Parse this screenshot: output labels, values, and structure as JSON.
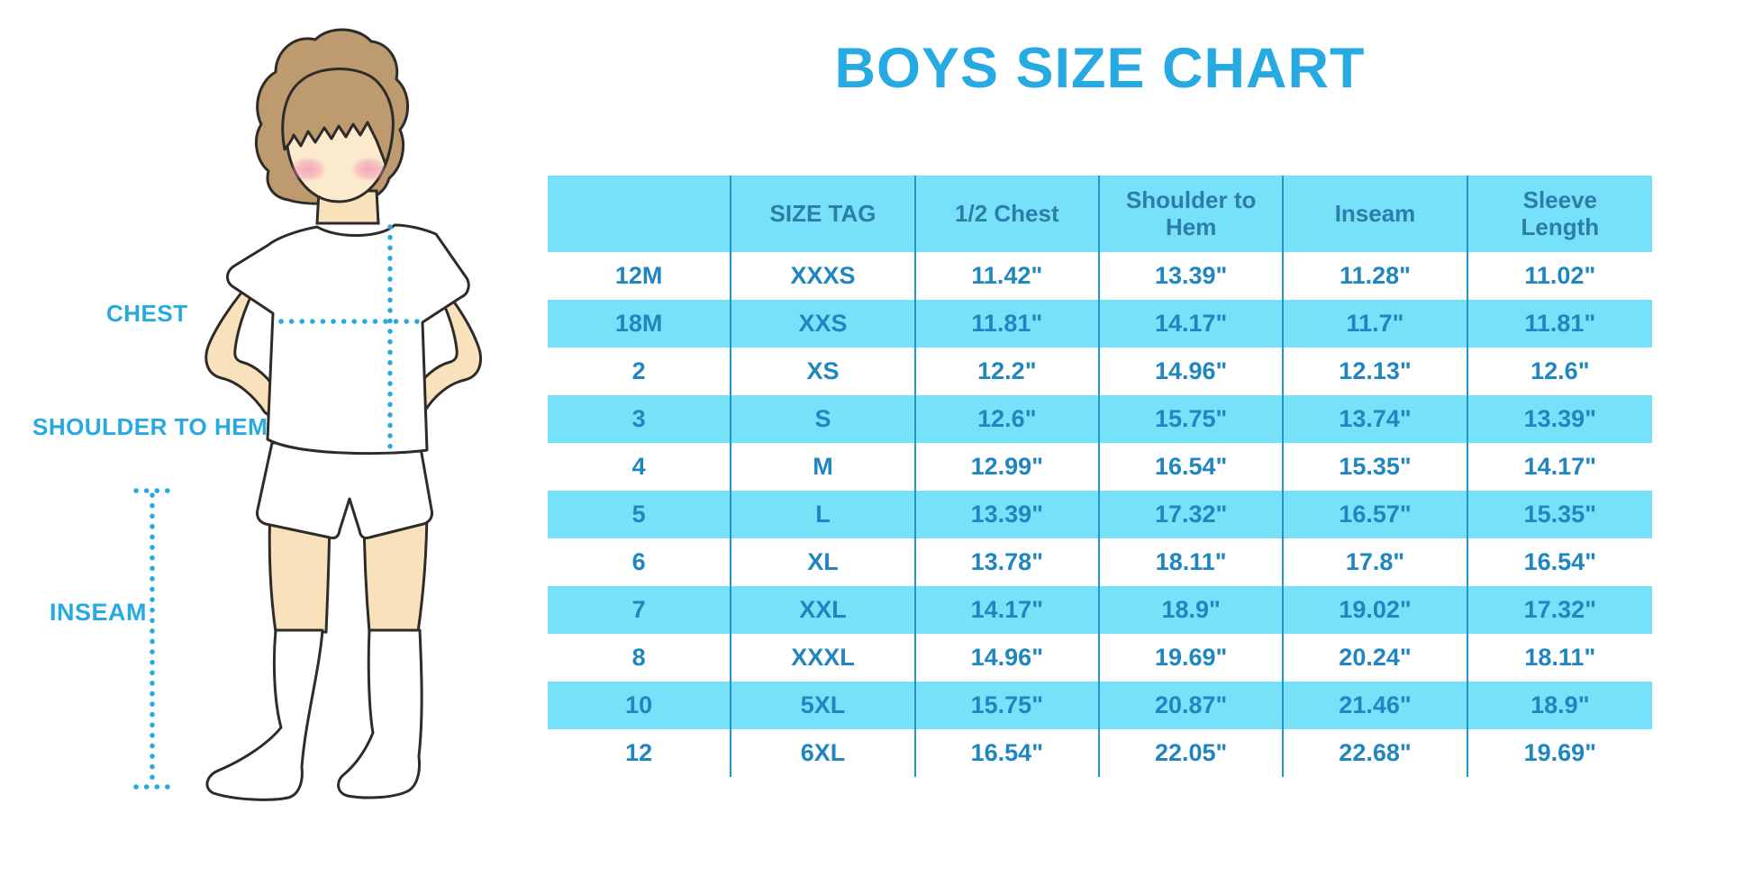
{
  "title": "BOYS SIZE CHART",
  "figure": {
    "labels": {
      "chest": "CHEST",
      "shoulder_to_hem": "SHOULDER TO HEM",
      "inseam": "INSEAM"
    }
  },
  "colors": {
    "accent": "#27AAE1",
    "cyan": "#78E1FA",
    "header_text": "#2B7EA9",
    "cell_text": "#1F86C0",
    "divider": "#2196CB",
    "skin": "#F9E2BB",
    "skin_face": "#FCEACD",
    "hair": "#BD9B6E",
    "blush": "#F29BB8",
    "outline": "#2E2C2A",
    "garment": "#FFFFFF"
  },
  "chart_data": {
    "type": "table",
    "title": "BOYS SIZE CHART",
    "columns": [
      "",
      "SIZE TAG",
      "1/2 Chest",
      "Shoulder to Hem",
      "Inseam",
      "Sleeve Length"
    ],
    "rows": [
      [
        "12M",
        "XXXS",
        "11.42\"",
        "13.39\"",
        "11.28\"",
        "11.02\""
      ],
      [
        "18M",
        "XXS",
        "11.81\"",
        "14.17\"",
        "11.7\"",
        "11.81\""
      ],
      [
        "2",
        "XS",
        "12.2\"",
        "14.96\"",
        "12.13\"",
        "12.6\""
      ],
      [
        "3",
        "S",
        "12.6\"",
        "15.75\"",
        "13.74\"",
        "13.39\""
      ],
      [
        "4",
        "M",
        "12.99\"",
        "16.54\"",
        "15.35\"",
        "14.17\""
      ],
      [
        "5",
        "L",
        "13.39\"",
        "17.32\"",
        "16.57\"",
        "15.35\""
      ],
      [
        "6",
        "XL",
        "13.78\"",
        "18.11\"",
        "17.8\"",
        "16.54\""
      ],
      [
        "7",
        "XXL",
        "14.17\"",
        "18.9\"",
        "19.02\"",
        "17.32\""
      ],
      [
        "8",
        "XXXL",
        "14.96\"",
        "19.69\"",
        "20.24\"",
        "18.11\""
      ],
      [
        "10",
        "5XL",
        "15.75\"",
        "20.87\"",
        "21.46\"",
        "18.9\""
      ],
      [
        "12",
        "6XL",
        "16.54\"",
        "22.05\"",
        "22.68\"",
        "19.69\""
      ]
    ],
    "layout_hints": {
      "striping": "header and every even row light cyan, odd rows white",
      "column_dividers": "vertical blue lines between all 6 columns, no outer border"
    }
  }
}
